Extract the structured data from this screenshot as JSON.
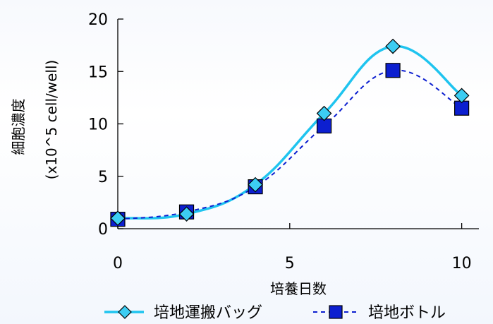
{
  "chart_data": {
    "type": "line",
    "title": "",
    "xlabel": "培養日数",
    "ylabel_line1": "細胞濃度",
    "ylabel_line2": "(x10^5 cell/well)",
    "xlim": [
      0,
      10.5
    ],
    "ylim": [
      0,
      20
    ],
    "xticks": [
      0,
      5,
      10
    ],
    "yticks": [
      0,
      5,
      10,
      15,
      20
    ],
    "grid": false,
    "legend_position": "bottom",
    "series": [
      {
        "name": "培地運搬バッグ",
        "x": [
          0,
          2,
          4,
          6,
          8,
          10
        ],
        "y": [
          1.0,
          1.4,
          4.2,
          11.0,
          17.4,
          12.7
        ],
        "color": "#1fc4ef",
        "marker": "diamond",
        "line": "solid smooth"
      },
      {
        "name": "培地ボトル",
        "x": [
          0,
          2,
          4,
          6,
          8,
          10
        ],
        "y": [
          0.9,
          1.6,
          4.0,
          9.8,
          15.1,
          11.5
        ],
        "color": "#0c1fd0",
        "marker": "square",
        "line": "dashed smooth"
      }
    ]
  }
}
